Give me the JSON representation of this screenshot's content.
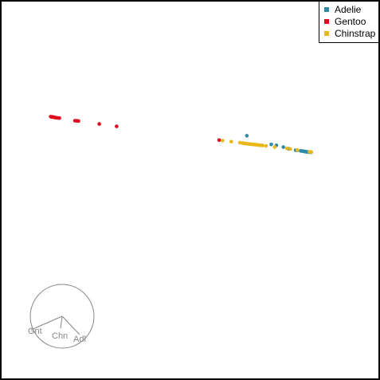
{
  "chart_data": {
    "type": "scatter",
    "title": "",
    "xlabel": "",
    "ylabel": "",
    "grid": false,
    "legend_position": "top-right",
    "series": [
      {
        "name": "Adelie",
        "color": "#2E8BA6",
        "points": [
          [
            0.33,
            0.31
          ],
          [
            0.47,
            0.26
          ],
          [
            0.5,
            0.255
          ],
          [
            0.54,
            0.245
          ],
          [
            0.57,
            0.235
          ],
          [
            0.61,
            0.227
          ],
          [
            0.62,
            0.226
          ],
          [
            0.64,
            0.223
          ],
          [
            0.645,
            0.222
          ],
          [
            0.655,
            0.221
          ],
          [
            0.66,
            0.22
          ],
          [
            0.665,
            0.219
          ],
          [
            0.67,
            0.218
          ],
          [
            0.675,
            0.218
          ],
          [
            0.68,
            0.217
          ],
          [
            0.685,
            0.216
          ],
          [
            0.69,
            0.216
          ],
          [
            0.695,
            0.215
          ],
          [
            0.7,
            0.215
          ]
        ]
      },
      {
        "name": "Gentoo",
        "color": "#E00A1E",
        "points": [
          [
            -0.8,
            0.42
          ],
          [
            -0.795,
            0.418
          ],
          [
            -0.79,
            0.419
          ],
          [
            -0.785,
            0.417
          ],
          [
            -0.78,
            0.416
          ],
          [
            -0.775,
            0.415
          ],
          [
            -0.77,
            0.414
          ],
          [
            -0.76,
            0.413
          ],
          [
            -0.75,
            0.412
          ],
          [
            -0.66,
            0.397
          ],
          [
            -0.65,
            0.396
          ],
          [
            -0.64,
            0.395
          ],
          [
            -0.52,
            0.378
          ],
          [
            -0.42,
            0.364
          ],
          [
            0.17,
            0.285
          ]
        ]
      },
      {
        "name": "Chinstrap",
        "color": "#E8B81C",
        "points": [
          [
            0.19,
            0.282
          ],
          [
            0.24,
            0.276
          ],
          [
            0.29,
            0.27
          ],
          [
            0.305,
            0.268
          ],
          [
            0.31,
            0.267
          ],
          [
            0.315,
            0.266
          ],
          [
            0.32,
            0.265
          ],
          [
            0.325,
            0.265
          ],
          [
            0.33,
            0.264
          ],
          [
            0.34,
            0.263
          ],
          [
            0.345,
            0.262
          ],
          [
            0.35,
            0.262
          ],
          [
            0.36,
            0.261
          ],
          [
            0.37,
            0.26
          ],
          [
            0.375,
            0.259
          ],
          [
            0.38,
            0.259
          ],
          [
            0.385,
            0.258
          ],
          [
            0.39,
            0.258
          ],
          [
            0.395,
            0.257
          ],
          [
            0.4,
            0.256
          ],
          [
            0.41,
            0.255
          ],
          [
            0.42,
            0.254
          ],
          [
            0.44,
            0.252
          ],
          [
            0.49,
            0.245
          ],
          [
            0.56,
            0.237
          ],
          [
            0.58,
            0.234
          ],
          [
            0.62,
            0.228
          ],
          [
            0.69,
            0.218
          ],
          [
            0.7,
            0.216
          ]
        ]
      }
    ],
    "axes_guide": {
      "labels": [
        "Gnt",
        "Chn",
        "Adl"
      ],
      "color": "#888888"
    }
  }
}
